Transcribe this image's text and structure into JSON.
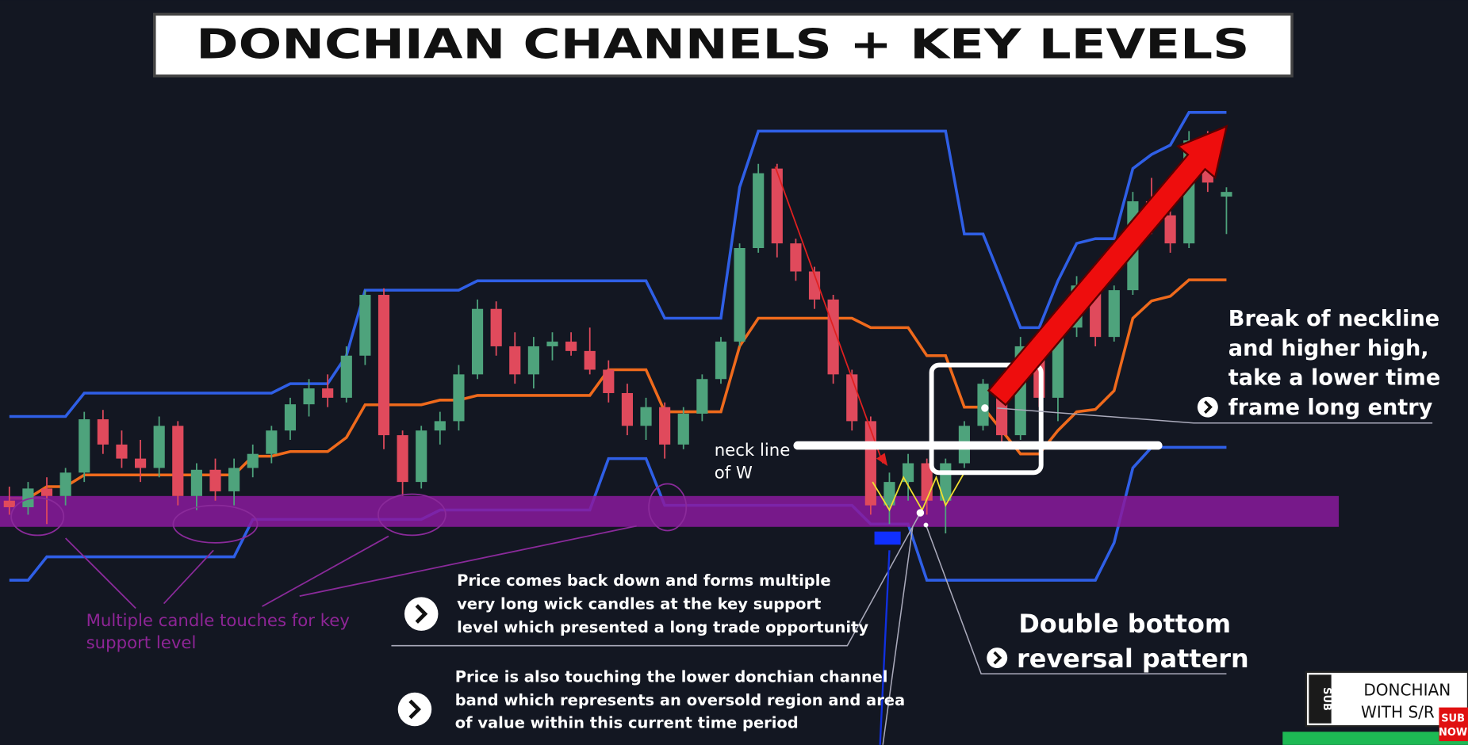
{
  "chart_data": {
    "type": "candlestick",
    "title": "DONCHIAN CHANNELS + KEY LEVELS",
    "ohlc": [
      [
        165,
        180,
        150,
        158
      ],
      [
        158,
        185,
        150,
        178
      ],
      [
        178,
        190,
        140,
        170
      ],
      [
        170,
        200,
        160,
        195
      ],
      [
        195,
        260,
        185,
        252
      ],
      [
        252,
        262,
        215,
        225
      ],
      [
        225,
        240,
        200,
        210
      ],
      [
        210,
        230,
        185,
        200
      ],
      [
        200,
        255,
        190,
        245
      ],
      [
        245,
        250,
        160,
        170
      ],
      [
        170,
        205,
        155,
        198
      ],
      [
        198,
        210,
        165,
        175
      ],
      [
        175,
        210,
        160,
        200
      ],
      [
        200,
        225,
        190,
        215
      ],
      [
        215,
        245,
        205,
        240
      ],
      [
        240,
        275,
        230,
        268
      ],
      [
        268,
        295,
        255,
        285
      ],
      [
        285,
        300,
        265,
        275
      ],
      [
        275,
        330,
        270,
        320
      ],
      [
        320,
        390,
        310,
        385
      ],
      [
        385,
        392,
        220,
        235
      ],
      [
        235,
        240,
        170,
        185
      ],
      [
        185,
        245,
        178,
        240
      ],
      [
        240,
        260,
        225,
        250
      ],
      [
        250,
        310,
        240,
        300
      ],
      [
        300,
        380,
        295,
        370
      ],
      [
        370,
        378,
        320,
        330
      ],
      [
        330,
        345,
        290,
        300
      ],
      [
        300,
        340,
        285,
        330
      ],
      [
        330,
        345,
        315,
        335
      ],
      [
        335,
        345,
        320,
        325
      ],
      [
        325,
        350,
        300,
        305
      ],
      [
        305,
        315,
        270,
        280
      ],
      [
        280,
        290,
        235,
        245
      ],
      [
        245,
        275,
        230,
        265
      ],
      [
        265,
        270,
        210,
        225
      ],
      [
        225,
        265,
        220,
        258
      ],
      [
        258,
        300,
        250,
        295
      ],
      [
        295,
        340,
        290,
        335
      ],
      [
        335,
        440,
        330,
        435
      ],
      [
        435,
        525,
        430,
        515
      ],
      [
        520,
        525,
        425,
        440
      ],
      [
        440,
        445,
        400,
        410
      ],
      [
        410,
        415,
        370,
        380
      ],
      [
        380,
        385,
        290,
        300
      ],
      [
        300,
        305,
        240,
        250
      ],
      [
        250,
        255,
        150,
        160
      ],
      [
        160,
        195,
        140,
        185
      ],
      [
        185,
        215,
        165,
        205
      ],
      [
        205,
        210,
        150,
        165
      ],
      [
        165,
        210,
        130,
        205
      ],
      [
        205,
        250,
        200,
        245
      ],
      [
        245,
        295,
        240,
        290
      ],
      [
        290,
        300,
        220,
        235
      ],
      [
        235,
        340,
        230,
        330
      ],
      [
        330,
        345,
        265,
        275
      ],
      [
        275,
        360,
        250,
        350
      ],
      [
        350,
        405,
        340,
        395
      ],
      [
        395,
        400,
        330,
        340
      ],
      [
        340,
        395,
        335,
        390
      ],
      [
        390,
        495,
        385,
        485
      ],
      [
        485,
        510,
        450,
        470
      ],
      [
        470,
        475,
        430,
        440
      ],
      [
        440,
        560,
        435,
        550
      ],
      [
        550,
        560,
        495,
        505
      ],
      [
        490,
        500,
        450,
        495
      ]
    ],
    "up_color": "#4ea37c",
    "down_color": "#e04a5c",
    "channels": [
      {
        "color": "#2f5fe6",
        "values": [
          255,
          255,
          255,
          255,
          280,
          280,
          280,
          280,
          280,
          280,
          280,
          280,
          280,
          280,
          280,
          290,
          290,
          290,
          320,
          390,
          390,
          390,
          390,
          390,
          390,
          400,
          400,
          400,
          400,
          400,
          400,
          400,
          400,
          400,
          400,
          360,
          360,
          360,
          360,
          500,
          560,
          560,
          560,
          560,
          560,
          560,
          560,
          560,
          560,
          560,
          560,
          450,
          450,
          400,
          350,
          350,
          400,
          440,
          445,
          445,
          520,
          535,
          545,
          580,
          580,
          580
        ]
      },
      {
        "color": "#ef6a1c",
        "values": [
          167.5,
          167.5,
          180,
          180,
          192.5,
          192.5,
          192.5,
          192.5,
          192.5,
          192.5,
          192.5,
          192.5,
          192.5,
          212.5,
          212.5,
          217.5,
          217.5,
          217.5,
          232.5,
          267.5,
          267.5,
          267.5,
          267.5,
          272.5,
          272.5,
          277.5,
          277.5,
          277.5,
          277.5,
          277.5,
          277.5,
          277.5,
          305,
          305,
          305,
          260,
          260,
          260,
          260,
          330,
          360,
          360,
          360,
          360,
          360,
          360,
          350,
          350,
          350,
          320,
          320,
          265,
          265,
          240,
          215,
          215,
          240,
          260,
          262.5,
          282.5,
          360,
          378.5,
          383.5,
          401,
          401,
          401
        ]
      },
      {
        "color": "#2f5fe6",
        "values": [
          80,
          80,
          105,
          105,
          105,
          105,
          105,
          105,
          105,
          105,
          105,
          105,
          105,
          145,
          145,
          145,
          145,
          145,
          145,
          145,
          145,
          145,
          145,
          155,
          155,
          155,
          155,
          155,
          155,
          155,
          155,
          155,
          210,
          210,
          210,
          160,
          160,
          160,
          160,
          160,
          160,
          160,
          160,
          160,
          160,
          160,
          140,
          140,
          140,
          80,
          80,
          80,
          80,
          80,
          80,
          80,
          80,
          80,
          80,
          120,
          200,
          222,
          222,
          222,
          222,
          222
        ]
      }
    ],
    "ylim": [
      60,
      600
    ]
  },
  "annotations": {
    "support_note": [
      "Multiple candle touches for key",
      "support level"
    ],
    "neckline": [
      "neck line",
      "of W"
    ],
    "breakout": [
      "Break of neckline",
      "and higher high,",
      "take a lower time",
      "frame long entry"
    ],
    "wick_note": [
      "Price comes back down and forms multiple",
      "very long wick candles at the key support",
      "level which presented a long trade opportunity"
    ],
    "channel_note": [
      "Price is also touching the lower donchian channel",
      "band which represents an oversold region and area",
      "of value within this current time period"
    ],
    "double_bottom": [
      "Double bottom",
      "reversal pattern"
    ]
  },
  "badge": {
    "side": "SUB",
    "lines": [
      "DONCHIAN",
      "WITH S/R"
    ],
    "button": [
      "SUB",
      "NOW"
    ]
  }
}
